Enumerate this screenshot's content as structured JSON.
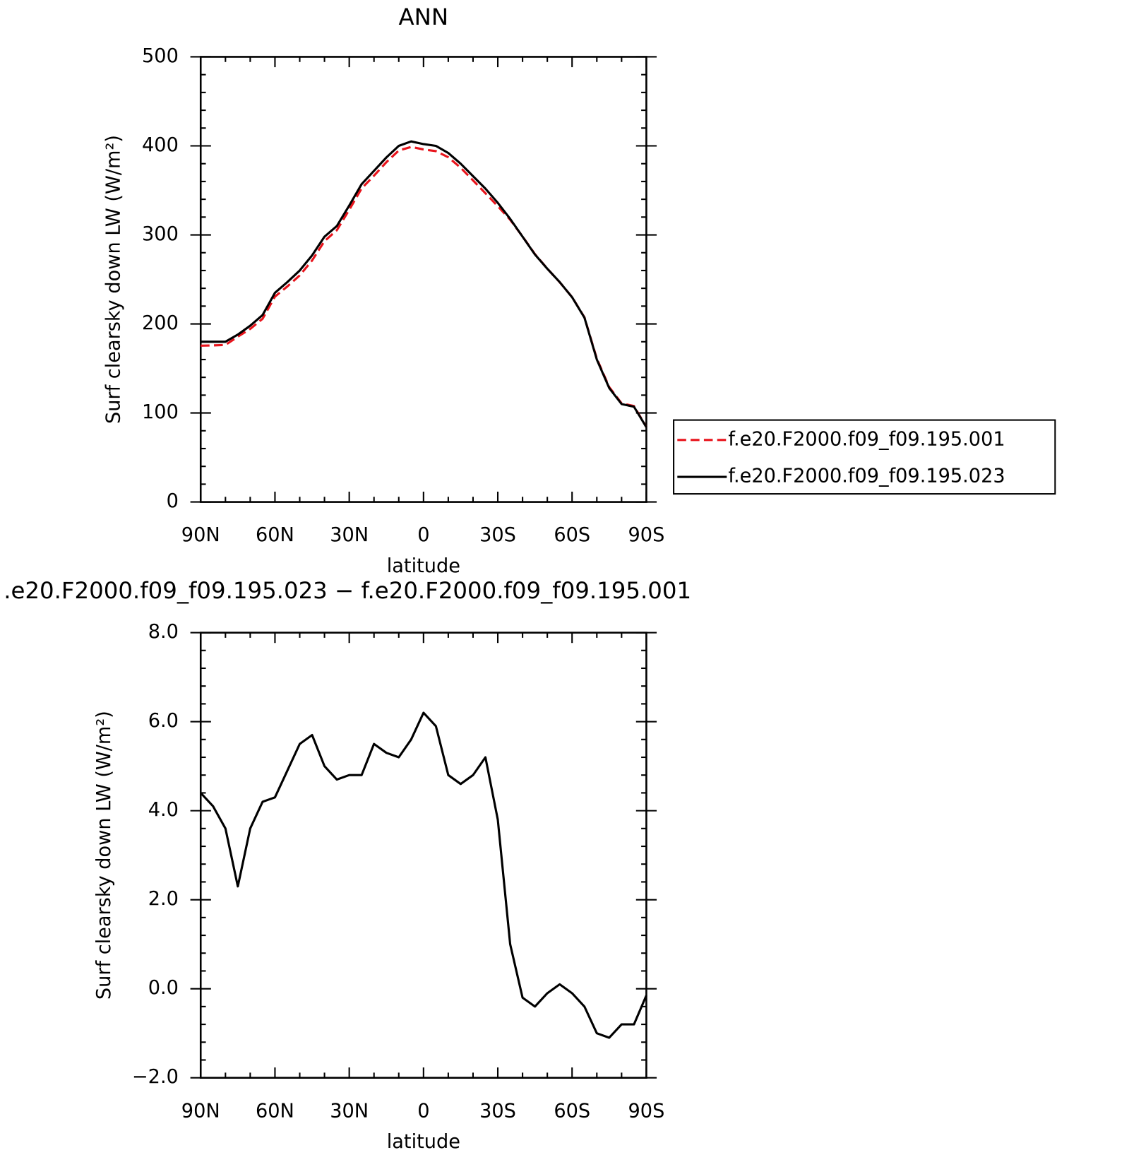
{
  "chart_data": [
    {
      "type": "line",
      "title": "ANN",
      "xlabel": "latitude",
      "ylabel": "Surf clearsky down LW (W/m²)",
      "x": [
        90,
        85,
        80,
        75,
        70,
        65,
        60,
        55,
        50,
        45,
        40,
        35,
        30,
        25,
        20,
        15,
        10,
        5,
        0,
        -5,
        -10,
        -15,
        -20,
        -25,
        -30,
        -35,
        -40,
        -45,
        -50,
        -55,
        -60,
        -65,
        -70,
        -75,
        -80,
        -85,
        -90
      ],
      "series": [
        {
          "name": "f.e20.F2000.f09_f09.195.001",
          "color": "#e8141c",
          "linestyle": "dashed",
          "values": [
            175.6,
            175.9,
            176.4,
            185.7,
            194.4,
            205.8,
            230.7,
            242.1,
            254.5,
            271.3,
            293,
            305.3,
            328.2,
            352.2,
            366.5,
            381.7,
            394.8,
            398.8,
            396,
            394.1,
            387.2,
            375.4,
            361.2,
            346.8,
            332.2,
            317,
            298.2,
            278.4,
            262.1,
            246.9,
            230.1,
            207.4,
            161,
            129.1,
            110.8,
            107.8,
            84.2
          ]
        },
        {
          "name": "f.e20.F2000.f09_f09.195.023",
          "color": "#000000",
          "linestyle": "solid",
          "values": [
            180,
            180,
            180,
            188,
            198,
            210,
            235,
            247,
            260,
            277,
            298,
            310,
            333,
            357,
            372,
            387,
            400,
            405,
            402,
            400,
            392,
            380,
            366,
            352,
            336,
            318,
            298,
            278,
            262,
            247,
            230,
            207,
            160,
            128,
            110,
            107,
            84
          ]
        }
      ],
      "xlim": [
        90,
        -90
      ],
      "xticks": [
        {
          "value": 90,
          "label": "90N"
        },
        {
          "value": 60,
          "label": "60N"
        },
        {
          "value": 30,
          "label": "30N"
        },
        0,
        {
          "value": -30,
          "label": "30S"
        },
        {
          "value": -60,
          "label": "60S"
        },
        {
          "value": -90,
          "label": "90S"
        }
      ],
      "ylim": [
        0,
        500
      ],
      "yticks": [
        0,
        100,
        200,
        300,
        400,
        500
      ],
      "legend": "right"
    },
    {
      "type": "line",
      "title": ".e20.F2000.f09_f09.195.023 − f.e20.F2000.f09_f09.195.001",
      "xlabel": "latitude",
      "ylabel": "Surf clearsky down LW (W/m²)",
      "x": [
        90,
        85,
        80,
        75,
        70,
        65,
        60,
        55,
        50,
        45,
        40,
        35,
        30,
        25,
        20,
        15,
        10,
        5,
        0,
        -5,
        -10,
        -15,
        -20,
        -25,
        -30,
        -35,
        -40,
        -45,
        -50,
        -55,
        -60,
        -65,
        -70,
        -75,
        -80,
        -85,
        -90
      ],
      "series": [
        {
          "color": "#000000",
          "linestyle": "solid",
          "values": [
            4.4,
            4.1,
            3.6,
            2.3,
            3.6,
            4.2,
            4.3,
            4.9,
            5.5,
            5.7,
            5.0,
            4.7,
            4.8,
            4.8,
            5.5,
            5.3,
            5.2,
            5.6,
            6.2,
            5.9,
            4.8,
            4.6,
            4.8,
            5.2,
            3.8,
            1.0,
            -0.2,
            -0.4,
            -0.1,
            0.1,
            -0.1,
            -0.4,
            -1.0,
            -1.1,
            -0.8,
            -0.8,
            -0.15
          ]
        }
      ],
      "xlim": [
        90,
        -90
      ],
      "xticks": [
        {
          "value": 90,
          "label": "90N"
        },
        {
          "value": 60,
          "label": "60N"
        },
        {
          "value": 30,
          "label": "30N"
        },
        0,
        {
          "value": -30,
          "label": "30S"
        },
        {
          "value": -60,
          "label": "60S"
        },
        {
          "value": -90,
          "label": "90S"
        }
      ],
      "ylim": [
        -2,
        8
      ],
      "yticks": [
        {
          "value": -2,
          "label": "−2.0"
        },
        {
          "value": 0,
          "label": "0.0"
        },
        {
          "value": 2,
          "label": "2.0"
        },
        {
          "value": 4,
          "label": "4.0"
        },
        {
          "value": 6,
          "label": "6.0"
        },
        {
          "value": 8,
          "label": "8.0"
        }
      ]
    }
  ]
}
